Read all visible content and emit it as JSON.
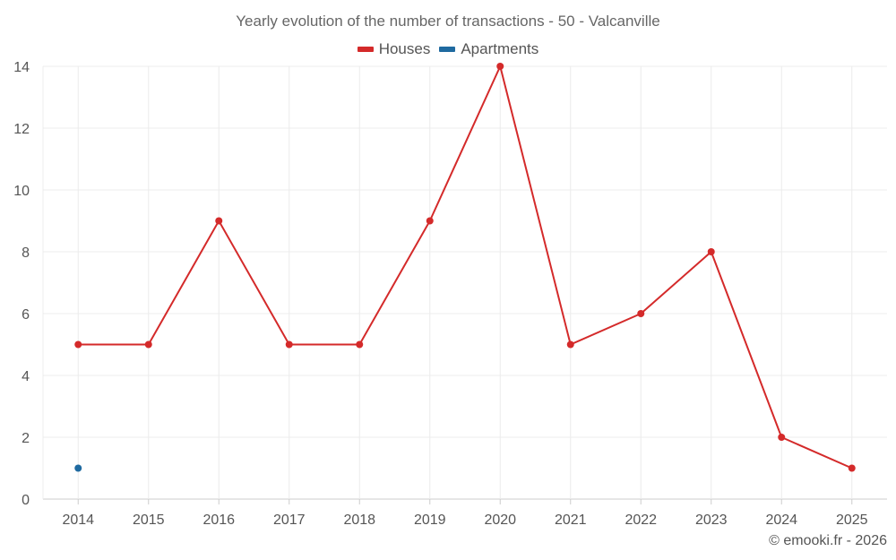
{
  "chart_data": {
    "type": "line",
    "title": "Yearly evolution of the number of transactions - 50 - Valcanville",
    "categories": [
      "2014",
      "2015",
      "2016",
      "2017",
      "2018",
      "2019",
      "2020",
      "2021",
      "2022",
      "2023",
      "2024",
      "2025"
    ],
    "series": [
      {
        "name": "Houses",
        "color": "#d42a2a",
        "values": [
          5,
          5,
          9,
          5,
          5,
          9,
          14,
          5,
          6,
          8,
          2,
          1
        ]
      },
      {
        "name": "Apartments",
        "color": "#1f6aa0",
        "values": [
          1,
          null,
          null,
          null,
          null,
          null,
          null,
          null,
          null,
          null,
          null,
          null
        ]
      }
    ],
    "ylim": [
      0,
      14
    ],
    "yticks": [
      0,
      2,
      4,
      6,
      8,
      10,
      12,
      14
    ],
    "grid": true,
    "legend_position": "top-center",
    "xlabel": "",
    "ylabel": ""
  },
  "credit": "© emooki.fr - 2026"
}
